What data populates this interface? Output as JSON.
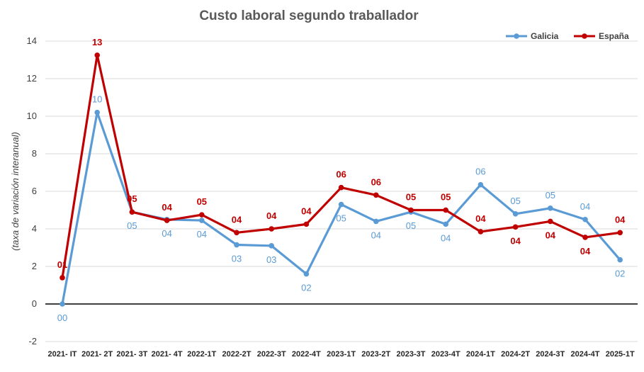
{
  "chart_data": {
    "type": "line",
    "title": "Custo laboral segundo traballador",
    "ylabel": "(taxa de variación interanual)",
    "ylim": [
      -2,
      14
    ],
    "yticks": [
      -2,
      0,
      2,
      4,
      6,
      8,
      10,
      12,
      14
    ],
    "grid": true,
    "legend_position": "top-right",
    "categories": [
      "2021- IT",
      "2021- 2T",
      "2021- 3T",
      "2021- 4T",
      "2022-1T",
      "2022-2T",
      "2022-3T",
      "2022-4T",
      "2023-1T",
      "2023-2T",
      "2023-3T",
      "2023-4T",
      "2024-1T",
      "2024-2T",
      "2024-3T",
      "2024-4T",
      "2025-1T"
    ],
    "series": [
      {
        "name": "Galicia",
        "color": "#5b9bd5",
        "values": [
          0.0,
          10.2,
          4.9,
          4.5,
          4.45,
          3.15,
          3.1,
          1.6,
          5.3,
          4.4,
          4.9,
          4.25,
          6.35,
          4.8,
          5.1,
          4.5,
          2.35
        ],
        "labels": [
          "00",
          "10",
          "05",
          "04",
          "04",
          "03",
          "03",
          "02",
          "05",
          "04",
          "05",
          "04",
          "06",
          "05",
          "05",
          "04",
          "02"
        ],
        "label_positions": [
          "below",
          "above",
          "below",
          "below",
          "below",
          "below",
          "below",
          "below",
          "below",
          "below",
          "below",
          "below",
          "above",
          "above",
          "above",
          "above",
          "below"
        ]
      },
      {
        "name": "España",
        "color": "#c00000",
        "values": [
          1.4,
          13.25,
          4.9,
          4.45,
          4.75,
          3.8,
          4.0,
          4.25,
          6.2,
          5.8,
          5.0,
          5.0,
          3.85,
          4.1,
          4.4,
          3.55,
          3.8
        ],
        "labels": [
          "01",
          "13",
          "05",
          "04",
          "05",
          "04",
          "04",
          "04",
          "06",
          "06",
          "05",
          "05",
          "04",
          "04",
          "04",
          "04",
          "04"
        ],
        "label_positions": [
          "above",
          "above",
          "above",
          "above",
          "above",
          "above",
          "above",
          "above",
          "above",
          "above",
          "above",
          "above",
          "above",
          "below",
          "below",
          "below",
          "above"
        ]
      }
    ]
  }
}
